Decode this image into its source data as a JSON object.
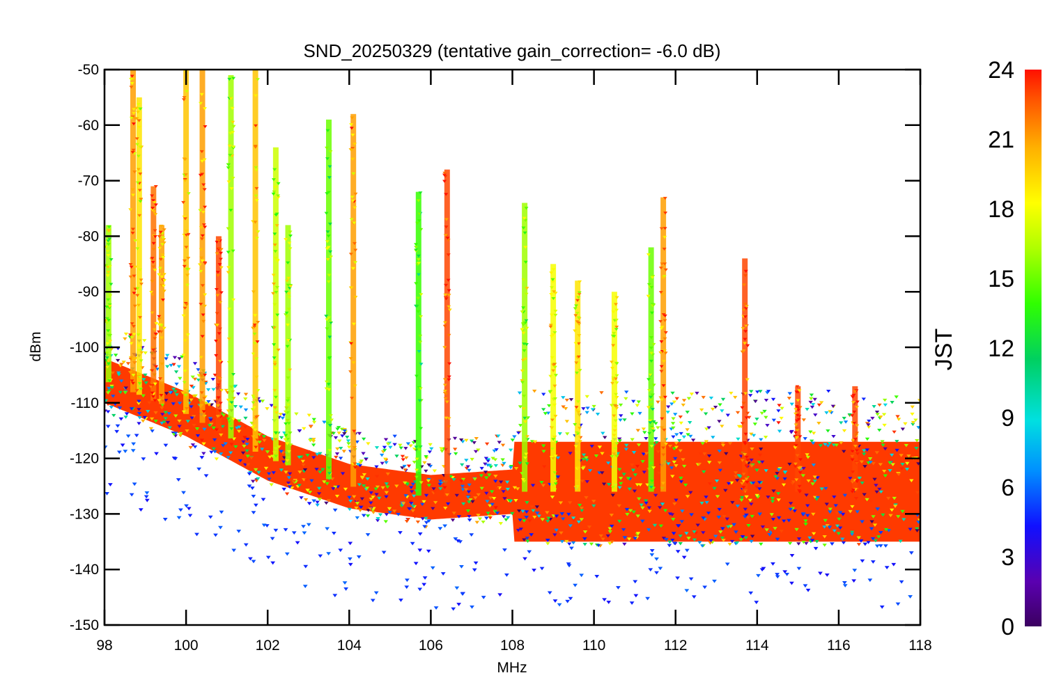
{
  "chart_data": {
    "type": "scatter",
    "title": "SND_20250329 (tentative gain_correction= -6.0 dB)",
    "xlabel": "MHz",
    "ylabel": "dBm",
    "xlim": [
      98,
      118
    ],
    "ylim": [
      -150,
      -50
    ],
    "x_ticks": [
      "98",
      "100",
      "102",
      "104",
      "106",
      "108",
      "110",
      "112",
      "114",
      "116",
      "118"
    ],
    "y_ticks": [
      "-50",
      "-60",
      "-70",
      "-80",
      "-90",
      "-100",
      "-110",
      "-120",
      "-130",
      "-140",
      "-150"
    ],
    "marker": "down-triangle",
    "colorbar": {
      "label": "JST",
      "range": [
        0,
        24
      ],
      "ticks": [
        "24",
        "21",
        "18",
        "15",
        "12",
        "9",
        "6",
        "3",
        "0"
      ],
      "colormap": "rainbow (purple → blue → cyan → green → yellow → orange → red)"
    },
    "noise_floor": [
      {
        "x": 98,
        "y": -106
      },
      {
        "x": 100,
        "y": -112
      },
      {
        "x": 102,
        "y": -120
      },
      {
        "x": 104,
        "y": -125
      },
      {
        "x": 106,
        "y": -127
      },
      {
        "x": 108,
        "y": -126
      },
      {
        "x": 110,
        "y": -126
      },
      {
        "x": 112,
        "y": -126
      },
      {
        "x": 114,
        "y": -126
      },
      {
        "x": 116,
        "y": -126
      },
      {
        "x": 118,
        "y": -126
      }
    ],
    "peaks": [
      {
        "x": 98.1,
        "y_top": -78,
        "jst": 16
      },
      {
        "x": 98.7,
        "y_top": -50,
        "jst": 21
      },
      {
        "x": 98.85,
        "y_top": -55,
        "jst": 19
      },
      {
        "x": 99.2,
        "y_top": -71,
        "jst": 22
      },
      {
        "x": 99.4,
        "y_top": -78,
        "jst": 21
      },
      {
        "x": 100.0,
        "y_top": -50,
        "jst": 20
      },
      {
        "x": 100.4,
        "y_top": -50,
        "jst": 21
      },
      {
        "x": 100.8,
        "y_top": -80,
        "jst": 23
      },
      {
        "x": 101.1,
        "y_top": -51,
        "jst": 16
      },
      {
        "x": 101.7,
        "y_top": -50,
        "jst": 20
      },
      {
        "x": 102.2,
        "y_top": -64,
        "jst": 17
      },
      {
        "x": 102.5,
        "y_top": -78,
        "jst": 16
      },
      {
        "x": 103.5,
        "y_top": -59,
        "jst": 15
      },
      {
        "x": 104.1,
        "y_top": -58,
        "jst": 21
      },
      {
        "x": 105.7,
        "y_top": -72,
        "jst": 14
      },
      {
        "x": 106.4,
        "y_top": -68,
        "jst": 23
      },
      {
        "x": 108.3,
        "y_top": -74,
        "jst": 16
      },
      {
        "x": 109.0,
        "y_top": -85,
        "jst": 18
      },
      {
        "x": 109.6,
        "y_top": -88,
        "jst": 19
      },
      {
        "x": 110.5,
        "y_top": -90,
        "jst": 18
      },
      {
        "x": 111.4,
        "y_top": -82,
        "jst": 15
      },
      {
        "x": 111.7,
        "y_top": -73,
        "jst": 21
      },
      {
        "x": 113.7,
        "y_top": -84,
        "jst": 23
      },
      {
        "x": 115.0,
        "y_top": -107,
        "jst": 23
      },
      {
        "x": 116.4,
        "y_top": -107,
        "jst": 23
      }
    ],
    "outlier_band": {
      "x_range": [
        98,
        118
      ],
      "y_range": [
        -148,
        -113
      ],
      "jst": 5
    }
  }
}
